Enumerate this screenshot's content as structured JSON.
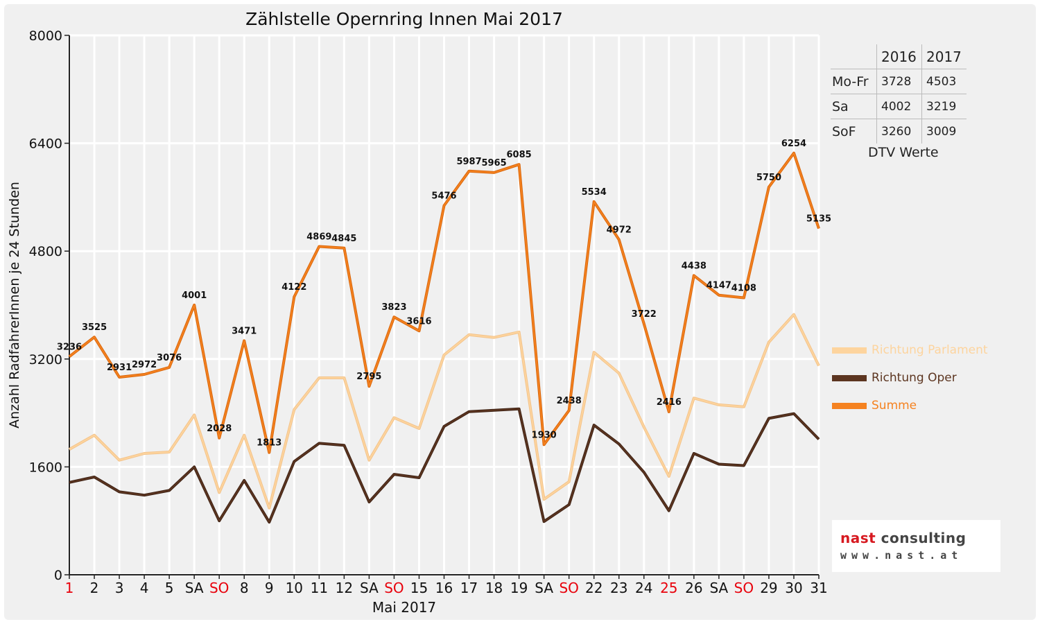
{
  "chart_data": {
    "type": "line",
    "title": "Zählstelle Opernring Innen Mai 2017",
    "xlabel": "Mai 2017",
    "ylabel": "Anzahl RadfahrerInnen je 24 Stunden",
    "ylim": [
      0,
      8000
    ],
    "yticks": [
      "0",
      "1600",
      "3200",
      "4800",
      "6400",
      "8000"
    ],
    "grid": true,
    "categories": [
      "1",
      "2",
      "3",
      "4",
      "5",
      "SA",
      "SO",
      "8",
      "9",
      "10",
      "11",
      "12",
      "SA",
      "SO",
      "15",
      "16",
      "17",
      "18",
      "19",
      "SA",
      "SO",
      "22",
      "23",
      "24",
      "25",
      "26",
      "SA",
      "SO",
      "29",
      "30",
      "31"
    ],
    "holidays": [
      "1",
      "SO",
      "25"
    ],
    "series": [
      {
        "name": "Richtung Parlament",
        "color": "#fdd49e",
        "values": [
          1860,
          2070,
          1700,
          1800,
          1820,
          2370,
          1220,
          2070,
          990,
          2450,
          2920,
          2920,
          1700,
          2330,
          2170,
          3260,
          3560,
          3520,
          3600,
          1120,
          1380,
          3300,
          2990,
          2190,
          1460,
          2620,
          2520,
          2490,
          3450,
          3860,
          3100
        ]
      },
      {
        "name": "Richtung Oper",
        "color": "#5c3520",
        "values": [
          1370,
          1450,
          1230,
          1180,
          1250,
          1600,
          800,
          1400,
          780,
          1680,
          1950,
          1920,
          1080,
          1490,
          1440,
          2200,
          2420,
          2440,
          2460,
          790,
          1040,
          2220,
          1940,
          1520,
          950,
          1800,
          1640,
          1620,
          2320,
          2390,
          2010
        ]
      },
      {
        "name": "Summe",
        "color": "#f58220",
        "values": [
          3236,
          3525,
          2931,
          2972,
          3076,
          4001,
          2028,
          3471,
          1813,
          4122,
          4869,
          4845,
          2795,
          3823,
          3616,
          5476,
          5987,
          5965,
          6085,
          1930,
          2438,
          5534,
          4972,
          3722,
          2416,
          4438,
          4147,
          4108,
          5750,
          6254,
          5135
        ]
      }
    ]
  },
  "dtv_table": {
    "headers": [
      "",
      "2016",
      "2017"
    ],
    "rows": [
      {
        "label": "Mo-Fr",
        "v2016": "3728",
        "v2017": "4503"
      },
      {
        "label": "Sa",
        "v2016": "4002",
        "v2017": "3219"
      },
      {
        "label": "SoF",
        "v2016": "3260",
        "v2017": "3009"
      }
    ],
    "caption": "DTV Werte"
  },
  "legend": [
    {
      "name": "Richtung Parlament",
      "color": "#fdd49e"
    },
    {
      "name": "Richtung Oper",
      "color": "#5c3520"
    },
    {
      "name": "Summe",
      "color": "#f58220"
    }
  ],
  "logo": {
    "line1_red": "nast",
    "line1_rest": " consulting",
    "line2": "www.nast.at"
  },
  "colors": {
    "holiday": "#e8000b",
    "grid": "#ffffff",
    "background": "#f0f0f0"
  }
}
